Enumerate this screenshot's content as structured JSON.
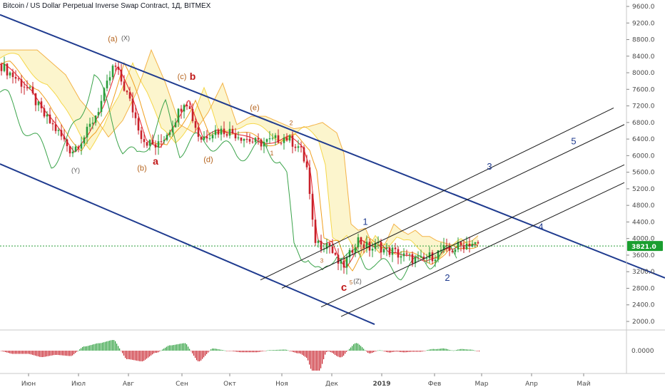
{
  "header": {
    "title": "Bitcoin / US Dollar Perpetual Inverse Swap Contract, 1Д, BITMEX"
  },
  "price_tag": {
    "value": "3821.0",
    "color": "#1a9e2f"
  },
  "colors": {
    "channel": "#1f3b8f",
    "fork": "#1a1a1a",
    "candle_up": "#2a9d3a",
    "candle_down": "#c8202a",
    "tenkan": "#e8202a",
    "kijun": "#f0a020",
    "span": "#f5d74a",
    "chikou": "#3aa34a"
  },
  "chart_data": {
    "type": "line",
    "title": "",
    "xlabel": "",
    "ylabel": "",
    "x_labels": [
      "Июн",
      "Июл",
      "Авг",
      "Сен",
      "Окт",
      "Ноя",
      "Дек",
      "2019",
      "Фев",
      "Мар",
      "Апр",
      "Май"
    ],
    "y_ticks": [
      9600,
      9200,
      8800,
      8400,
      8000,
      7600,
      7200,
      6800,
      6400,
      6000,
      5600,
      5200,
      4800,
      4400,
      4000,
      3600,
      3200,
      2800,
      2400,
      2000
    ],
    "y_tick_labels": [
      "9600.0",
      "9200.0",
      "8800.0",
      "8400.0",
      "8000.0",
      "7600.0",
      "7200.0",
      "6800.0",
      "6400.0",
      "6000.0",
      "5600.0",
      "5200.0",
      "4800.0",
      "4400.0",
      "4000.0",
      "3600.0",
      "3200.0",
      "2800.0",
      "2400.0",
      "2000.0"
    ],
    "ylim": [
      1900,
      9800
    ],
    "last_price": 3821,
    "grid": false,
    "series": [
      {
        "x": [
          0,
          20,
          40,
          60,
          80,
          100,
          120,
          140,
          160,
          180,
          200,
          220,
          240,
          260,
          280,
          300,
          320,
          340,
          360,
          380,
          400,
          420,
          430,
          440,
          450,
          460,
          470,
          480,
          490,
          500,
          510,
          520,
          530,
          540,
          550,
          560,
          570,
          580,
          590,
          600,
          610,
          620,
          630,
          640,
          650,
          660,
          670
        ],
        "values": [
          8200,
          7900,
          7600,
          7000,
          6600,
          6100,
          6500,
          7200,
          8200,
          7400,
          6400,
          6200,
          6700,
          7400,
          6400,
          6600,
          6600,
          6450,
          6300,
          6350,
          6450,
          6200,
          5700,
          4000,
          3850,
          3900,
          3500,
          3300,
          3600,
          4000,
          3850,
          3750,
          3850,
          3700,
          3700,
          3600,
          3550,
          3500,
          3450,
          3550,
          3600,
          3750,
          3700,
          3800,
          3850,
          3900,
          3821
        ]
      }
    ],
    "oscillator": {
      "zero_label": "0.0000"
    },
    "annotations": [
      {
        "text": "(a)",
        "x": 158,
        "y": 8760,
        "color": "#b5641e",
        "size": 11
      },
      {
        "text": "(X)",
        "x": 176,
        "y": 8780,
        "color": "#555555",
        "size": 9
      },
      {
        "text": "(c)",
        "x": 255,
        "y": 7850,
        "color": "#b5641e",
        "size": 11
      },
      {
        "text": "b",
        "x": 270,
        "y": 7830,
        "color": "#c01818",
        "size": 14
      },
      {
        "text": "(e)",
        "x": 357,
        "y": 7100,
        "color": "#b5641e",
        "size": 11
      },
      {
        "text": "2",
        "x": 408,
        "y": 6740,
        "color": "#b5641e",
        "size": 9
      },
      {
        "text": "(Y)",
        "x": 106,
        "y": 5590,
        "color": "#555555",
        "size": 9
      },
      {
        "text": "(b)",
        "x": 199,
        "y": 5640,
        "color": "#b5641e",
        "size": 11
      },
      {
        "text": "a",
        "x": 218,
        "y": 5780,
        "color": "#c01818",
        "size": 14
      },
      {
        "text": "(d)",
        "x": 292,
        "y": 5840,
        "color": "#b5641e",
        "size": 11
      },
      {
        "text": "1",
        "x": 381,
        "y": 6010,
        "color": "#b5641e",
        "size": 9
      },
      {
        "text": "1",
        "x": 512,
        "y": 4330,
        "color": "#1f3b8f",
        "size": 13
      },
      {
        "text": "3",
        "x": 686,
        "y": 5660,
        "color": "#1f3b8f",
        "size": 13
      },
      {
        "text": "5",
        "x": 804,
        "y": 6270,
        "color": "#1f3b8f",
        "size": 13
      },
      {
        "text": "4",
        "x": 758,
        "y": 4210,
        "color": "#1f3b8f",
        "size": 13
      },
      {
        "text": "2",
        "x": 627,
        "y": 2980,
        "color": "#1f3b8f",
        "size": 13
      },
      {
        "text": "c",
        "x": 482,
        "y": 2740,
        "color": "#c01818",
        "size": 15
      },
      {
        "text": "3",
        "x": 451,
        "y": 3420,
        "color": "#b5641e",
        "size": 8
      },
      {
        "text": "5",
        "x": 492,
        "y": 2890,
        "color": "#b5641e",
        "size": 8
      },
      {
        "text": "(Z)",
        "x": 501,
        "y": 2920,
        "color": "#555555",
        "size": 9
      }
    ]
  }
}
